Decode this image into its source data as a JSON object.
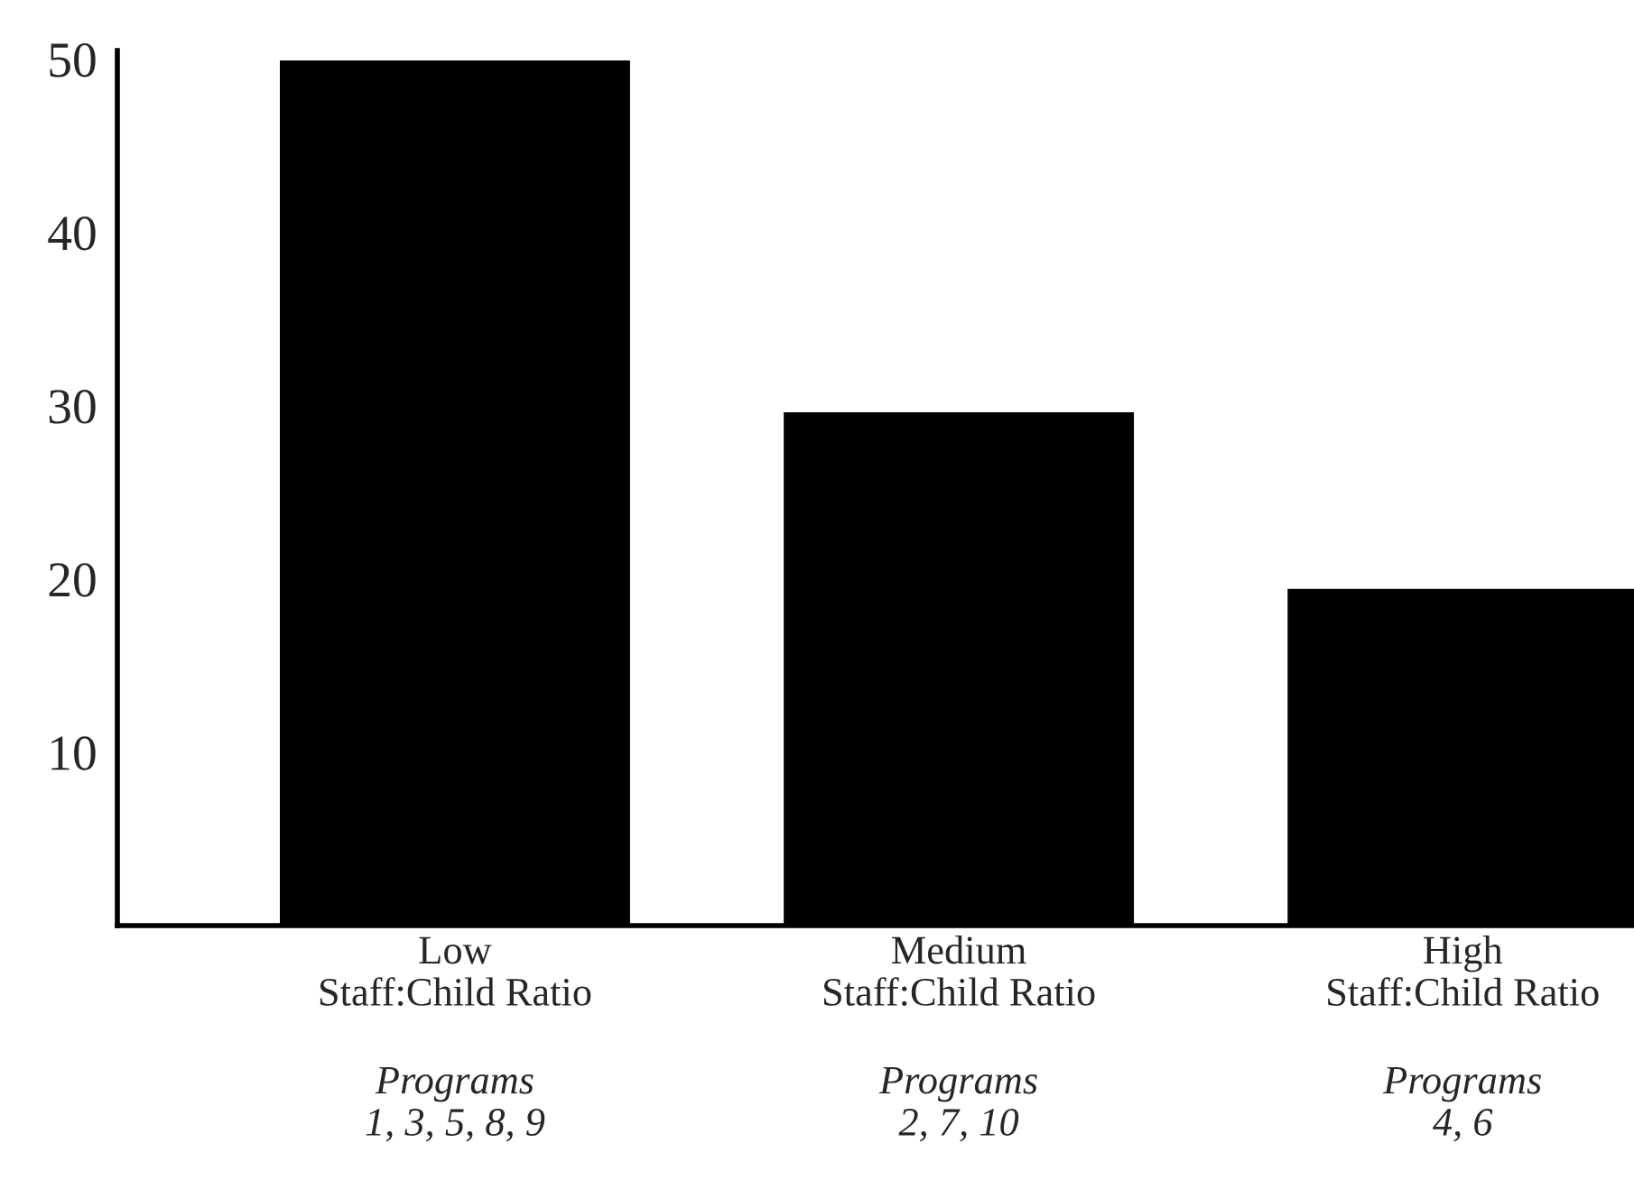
{
  "chart_data": {
    "type": "bar",
    "categories": [
      "Low\nStaff:Child Ratio",
      "Medium\nStaff:Child Ratio",
      "High\nStaff:Child Ratio"
    ],
    "values": [
      50,
      29.7,
      19.5
    ],
    "color": "#000000",
    "ylim": [
      0,
      50.5
    ],
    "yticks": [
      10,
      20,
      30,
      40,
      50
    ],
    "grid": false,
    "annotations": [
      "Programs\n1, 3, 5, 8, 9",
      "Programs\n2, 7, 10",
      "Programs\n4, 6"
    ]
  }
}
